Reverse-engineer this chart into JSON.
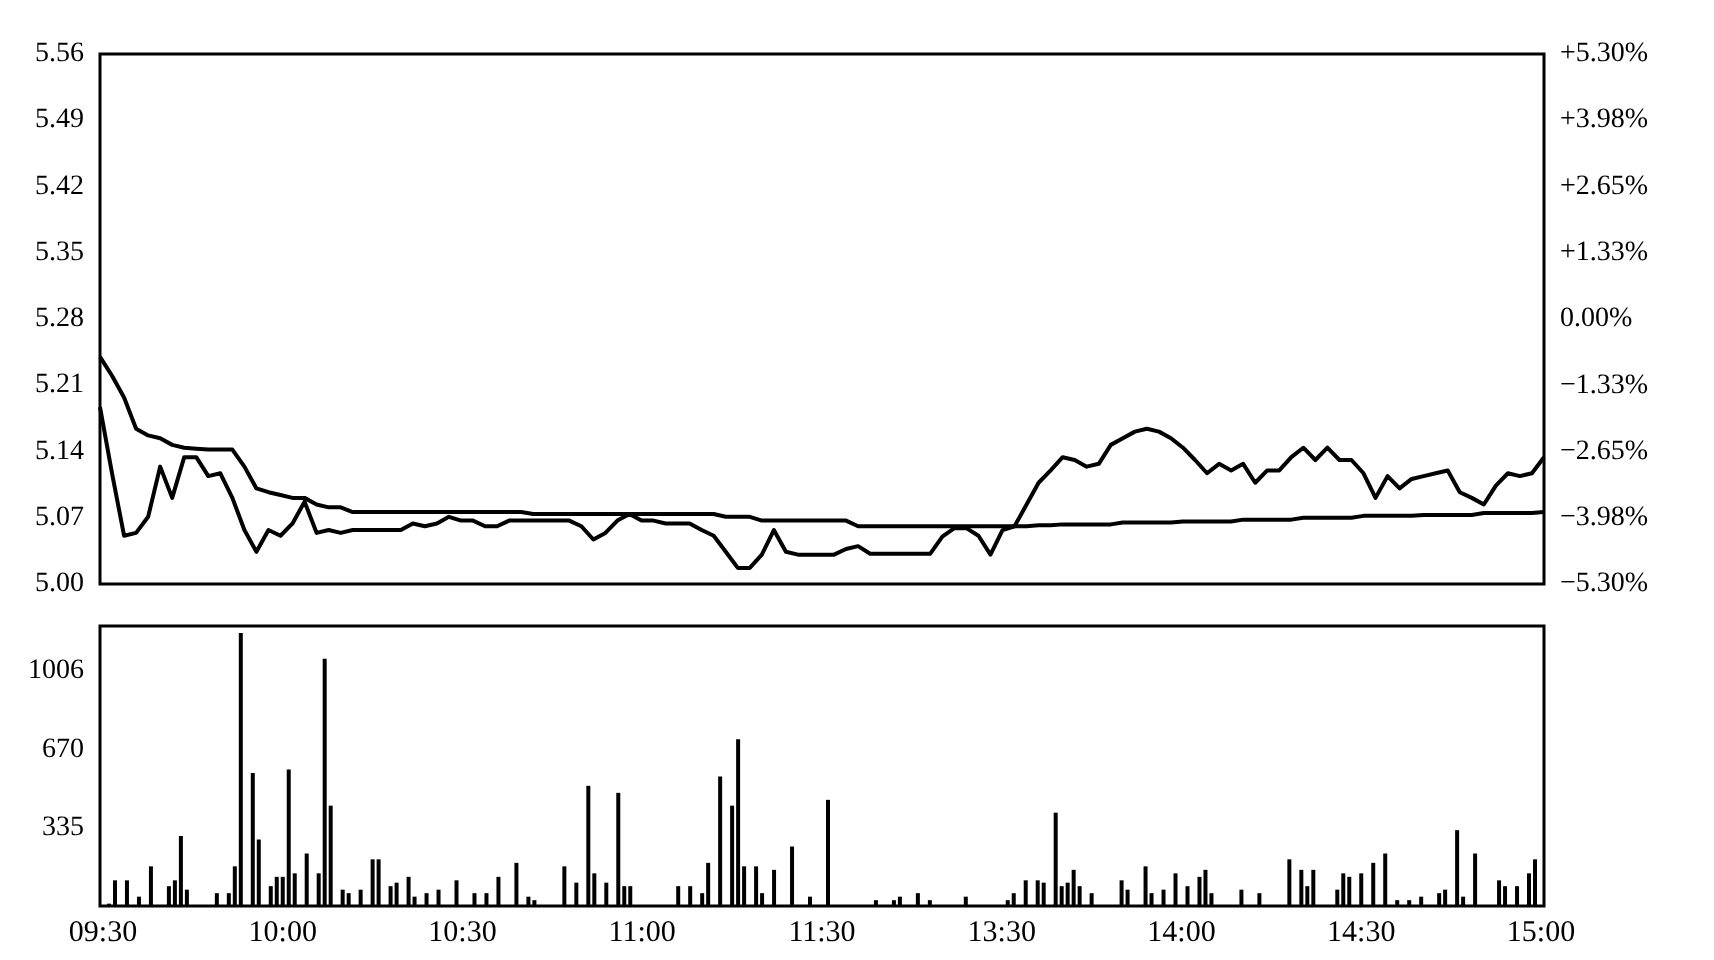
{
  "chart_data": [
    {
      "type": "line",
      "categories": [
        null,
        null,
        null,
        null,
        null,
        null,
        null,
        null,
        null,
        null,
        null,
        null,
        null,
        null,
        null,
        null,
        null,
        null,
        null,
        null,
        null,
        null,
        null,
        null,
        null,
        null,
        null,
        null,
        null,
        null,
        null,
        null,
        null,
        null,
        null,
        null,
        null,
        null,
        null,
        null,
        null,
        null,
        null,
        null,
        null,
        null,
        null,
        null,
        null,
        null,
        null,
        null,
        null,
        null,
        null,
        null,
        null,
        null,
        null,
        null,
        null,
        null,
        null,
        null,
        null,
        null,
        null,
        null,
        null,
        null,
        null,
        null,
        null,
        null,
        null,
        null,
        null,
        null,
        null,
        null,
        null,
        null,
        null,
        null,
        null,
        null,
        null,
        null,
        null,
        null,
        null,
        null,
        null,
        null,
        null,
        null,
        null,
        null,
        null,
        null,
        null,
        null,
        null,
        null,
        null,
        null,
        null,
        null,
        null,
        null,
        null,
        null,
        null,
        null,
        null,
        null,
        null,
        null,
        null,
        null,
        null
      ],
      "ylim": [
        5.0,
        5.56
      ],
      "yticks": [
        {
          "value": 5.0,
          "label": "5.00"
        },
        5.07,
        5.14,
        5.21,
        5.28,
        5.35,
        5.42,
        5.49,
        5.56
      ],
      "y2lim": [
        -5.3,
        5.3
      ],
      "y2ticks": [
        {
          "value": -5.3,
          "label": "−5.30%"
        },
        {
          "value": -3.98,
          "label": "−3.98%"
        },
        {
          "value": -2.65,
          "label": "−2.65%"
        },
        {
          "value": -1.33,
          "label": "−1.33%"
        },
        {
          "value": 0,
          "label": "0.00%"
        },
        {
          "value": 1.33,
          "label": "+1.33%"
        },
        {
          "value": 2.65,
          "label": "+2.65%"
        },
        {
          "value": 3.98,
          "label": "+3.98%"
        },
        {
          "value": 5.3,
          "label": "+5.30%"
        }
      ],
      "series": [
        {
          "color": "#000000",
          "values": [
            5.187,
            5.117,
            5.051,
            5.054,
            5.071,
            5.124,
            5.091,
            5.134,
            5.134,
            5.114,
            5.117,
            5.091,
            5.057,
            5.034,
            5.057,
            5.051,
            5.064,
            5.087,
            5.054,
            5.057,
            5.054,
            5.057,
            5.057,
            5.057,
            5.057,
            5.057,
            5.064,
            5.061,
            5.064,
            5.071,
            5.067,
            5.067,
            5.061,
            5.061,
            5.067,
            5.067,
            5.067,
            5.067,
            5.067,
            5.067,
            5.061,
            5.047,
            5.054,
            5.067,
            5.074,
            5.067,
            5.067,
            5.064,
            5.064,
            5.064,
            5.057,
            5.051,
            5.034,
            5.017,
            5.017,
            5.031,
            5.057,
            5.034,
            5.031,
            5.031,
            5.031,
            5.031,
            5.037,
            5.04,
            5.032,
            5.032,
            5.032,
            5.032,
            5.032,
            5.032,
            5.05,
            5.059,
            5.059,
            5.051,
            5.031,
            5.057,
            5.061,
            5.084,
            5.107,
            5.12,
            5.134,
            5.131,
            5.124,
            5.127,
            5.147,
            5.154,
            5.161,
            5.164,
            5.161,
            5.154,
            5.144,
            5.131,
            5.117,
            5.127,
            5.12,
            5.127,
            5.107,
            5.12,
            5.12,
            5.134,
            5.144,
            5.131,
            5.144,
            5.131,
            5.131,
            5.117,
            5.091,
            5.114,
            5.101,
            5.111,
            5.114,
            5.117,
            5.12,
            5.097,
            5.091,
            5.084,
            5.104,
            5.117,
            5.114,
            5.117,
            5.134
          ]
        },
        {
          "color": "#000000",
          "values": [
            5.24,
            5.22,
            5.197,
            5.164,
            5.157,
            5.154,
            5.147,
            5.144,
            5.143,
            5.142,
            5.142,
            5.142,
            5.124,
            5.101,
            5.097,
            5.094,
            5.091,
            5.091,
            5.084,
            5.081,
            5.081,
            5.076,
            5.076,
            5.076,
            5.076,
            5.076,
            5.076,
            5.076,
            5.076,
            5.076,
            5.076,
            5.076,
            5.076,
            5.076,
            5.076,
            5.076,
            5.074,
            5.074,
            5.074,
            5.074,
            5.074,
            5.074,
            5.074,
            5.074,
            5.074,
            5.074,
            5.074,
            5.074,
            5.074,
            5.074,
            5.074,
            5.074,
            5.071,
            5.071,
            5.071,
            5.067,
            5.067,
            5.067,
            5.067,
            5.067,
            5.067,
            5.067,
            5.067,
            5.061,
            5.061,
            5.061,
            5.061,
            5.061,
            5.061,
            5.061,
            5.061,
            5.061,
            5.061,
            5.061,
            5.061,
            5.061,
            5.061,
            5.061,
            5.062,
            5.062,
            5.063,
            5.063,
            5.063,
            5.063,
            5.063,
            5.065,
            5.065,
            5.065,
            5.065,
            5.065,
            5.066,
            5.066,
            5.066,
            5.066,
            5.066,
            5.068,
            5.068,
            5.068,
            5.068,
            5.068,
            5.07,
            5.07,
            5.07,
            5.07,
            5.07,
            5.072,
            5.072,
            5.072,
            5.072,
            5.072,
            5.073,
            5.073,
            5.073,
            5.073,
            5.073,
            5.075,
            5.075,
            5.075,
            5.075,
            5.075,
            5.076
          ]
        }
      ]
    },
    {
      "type": "bar",
      "categories": [
        "09:30",
        null,
        null,
        null,
        null,
        null,
        null,
        null,
        null,
        null,
        null,
        null,
        null,
        null,
        null,
        null,
        null,
        null,
        null,
        null,
        null,
        null,
        null,
        null,
        null,
        null,
        null,
        null,
        null,
        null,
        "10:00",
        null,
        null,
        null,
        null,
        null,
        null,
        null,
        null,
        null,
        null,
        null,
        null,
        null,
        null,
        null,
        null,
        null,
        null,
        null,
        null,
        null,
        null,
        null,
        null,
        null,
        null,
        null,
        null,
        null,
        "10:30",
        null,
        null,
        null,
        null,
        null,
        null,
        null,
        null,
        null,
        null,
        null,
        null,
        null,
        null,
        null,
        null,
        null,
        null,
        null,
        null,
        null,
        null,
        null,
        null,
        null,
        null,
        null,
        null,
        null,
        "11:00",
        null,
        null,
        null,
        null,
        null,
        null,
        null,
        null,
        null,
        null,
        null,
        null,
        null,
        null,
        null,
        null,
        null,
        null,
        null,
        null,
        null,
        null,
        null,
        null,
        null,
        null,
        null,
        null,
        null,
        "11:30",
        null,
        null,
        null,
        null,
        null,
        null,
        null,
        null,
        null,
        null,
        null,
        null,
        null,
        null,
        null,
        null,
        null,
        null,
        null,
        null,
        null,
        null,
        null,
        null,
        null,
        null,
        null,
        null,
        null,
        "13:30",
        null,
        null,
        null,
        null,
        null,
        null,
        null,
        null,
        null,
        null,
        null,
        null,
        null,
        null,
        null,
        null,
        null,
        null,
        null,
        null,
        null,
        null,
        null,
        null,
        null,
        null,
        null,
        null,
        null,
        "14:00",
        null,
        null,
        null,
        null,
        null,
        null,
        null,
        null,
        null,
        null,
        null,
        null,
        null,
        null,
        null,
        null,
        null,
        null,
        null,
        null,
        null,
        null,
        null,
        null,
        null,
        null,
        null,
        null,
        null,
        "14:30",
        null,
        null,
        null,
        null,
        null,
        null,
        null,
        null,
        null,
        null,
        null,
        null,
        null,
        null,
        null,
        null,
        null,
        null,
        null,
        null,
        null,
        null,
        null,
        null,
        null,
        null,
        null,
        null,
        null,
        "15:00"
      ],
      "ylim": [
        0,
        1200
      ],
      "yticks": [
        335,
        670,
        1006
      ],
      "color": "#000000",
      "values": [
        0,
        10,
        110,
        0,
        110,
        0,
        40,
        0,
        170,
        0,
        0,
        85,
        110,
        300,
        70,
        0,
        0,
        0,
        0,
        55,
        0,
        55,
        170,
        1170,
        0,
        570,
        285,
        0,
        85,
        125,
        125,
        585,
        140,
        0,
        225,
        0,
        140,
        1060,
        430,
        0,
        70,
        55,
        0,
        70,
        0,
        200,
        200,
        0,
        85,
        100,
        0,
        125,
        40,
        0,
        55,
        0,
        70,
        0,
        0,
        110,
        0,
        0,
        55,
        0,
        55,
        0,
        125,
        0,
        0,
        185,
        0,
        40,
        25,
        0,
        0,
        0,
        0,
        170,
        0,
        100,
        0,
        515,
        140,
        0,
        100,
        0,
        485,
        85,
        85,
        0,
        0,
        0,
        0,
        0,
        0,
        0,
        85,
        0,
        85,
        0,
        55,
        185,
        0,
        555,
        0,
        430,
        715,
        170,
        0,
        170,
        55,
        0,
        155,
        0,
        0,
        255,
        0,
        0,
        40,
        0,
        0,
        455,
        0,
        0,
        0,
        0,
        0,
        0,
        0,
        25,
        0,
        0,
        25,
        40,
        0,
        0,
        55,
        0,
        25,
        0,
        0,
        0,
        0,
        0,
        40,
        0,
        0,
        0,
        0,
        0,
        0,
        25,
        55,
        0,
        110,
        0,
        110,
        100,
        0,
        400,
        85,
        100,
        155,
        85,
        0,
        55,
        0,
        0,
        0,
        0,
        110,
        70,
        0,
        0,
        170,
        55,
        0,
        70,
        0,
        140,
        0,
        85,
        0,
        125,
        155,
        55,
        0,
        0,
        0,
        0,
        70,
        0,
        0,
        55,
        0,
        0,
        0,
        0,
        200,
        0,
        155,
        85,
        155,
        0,
        0,
        0,
        70,
        140,
        125,
        0,
        140,
        0,
        185,
        0,
        225,
        0,
        25,
        0,
        25,
        0,
        40,
        0,
        0,
        55,
        70,
        0,
        325,
        40,
        0,
        225,
        0,
        0,
        0,
        110,
        85,
        0,
        85,
        0,
        140,
        200,
        0
      ]
    }
  ]
}
